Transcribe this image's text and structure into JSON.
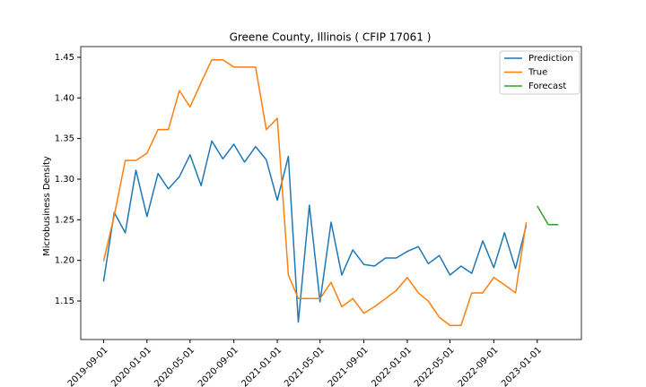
{
  "chart_data": {
    "type": "line",
    "title": "Greene County, Illinois ( CFIP 17061 )",
    "y_label": "Microbusiness Density",
    "x": [
      "2019-09-01",
      "2019-10-01",
      "2019-11-01",
      "2019-12-01",
      "2020-01-01",
      "2020-02-01",
      "2020-03-01",
      "2020-04-01",
      "2020-05-01",
      "2020-06-01",
      "2020-07-01",
      "2020-08-01",
      "2020-09-01",
      "2020-10-01",
      "2020-11-01",
      "2020-12-01",
      "2021-01-01",
      "2021-02-01",
      "2021-03-01",
      "2021-04-01",
      "2021-05-01",
      "2021-06-01",
      "2021-07-01",
      "2021-08-01",
      "2021-09-01",
      "2021-10-01",
      "2021-11-01",
      "2021-12-01",
      "2022-01-01",
      "2022-02-01",
      "2022-03-01",
      "2022-04-01",
      "2022-05-01",
      "2022-06-01",
      "2022-07-01",
      "2022-08-01",
      "2022-09-01",
      "2022-10-01",
      "2022-11-01",
      "2022-12-01",
      "2023-01-01",
      "2023-02-01",
      "2023-03-01"
    ],
    "series": [
      {
        "name": "Prediction",
        "color": "#1f77b4",
        "values": [
          1.174,
          1.259,
          1.234,
          1.311,
          1.254,
          1.307,
          1.288,
          1.303,
          1.33,
          1.292,
          1.347,
          1.325,
          1.343,
          1.321,
          1.34,
          1.324,
          1.274,
          1.328,
          1.124,
          1.268,
          1.149,
          1.247,
          1.182,
          1.213,
          1.195,
          1.193,
          1.203,
          1.203,
          1.211,
          1.217,
          1.196,
          1.206,
          1.182,
          1.193,
          1.184,
          1.224,
          1.191,
          1.234,
          1.19,
          1.243,
          null,
          null,
          null
        ]
      },
      {
        "name": "True",
        "color": "#ff7f0e",
        "values": [
          1.199,
          1.255,
          1.323,
          1.323,
          1.332,
          1.361,
          1.361,
          1.409,
          1.389,
          1.419,
          1.447,
          1.447,
          1.438,
          1.438,
          1.438,
          1.361,
          1.375,
          1.182,
          1.153,
          1.153,
          1.153,
          1.173,
          1.143,
          1.153,
          1.135,
          1.143,
          1.153,
          1.163,
          1.179,
          1.16,
          1.15,
          1.13,
          1.12,
          1.12,
          1.16,
          1.16,
          1.179,
          1.17,
          1.16,
          1.247,
          null,
          null,
          null
        ]
      },
      {
        "name": "Forecast",
        "color": "#2ca02c",
        "values": [
          null,
          null,
          null,
          null,
          null,
          null,
          null,
          null,
          null,
          null,
          null,
          null,
          null,
          null,
          null,
          null,
          null,
          null,
          null,
          null,
          null,
          null,
          null,
          null,
          null,
          null,
          null,
          null,
          null,
          null,
          null,
          null,
          null,
          null,
          null,
          null,
          null,
          null,
          null,
          null,
          1.267,
          1.244,
          1.244
        ]
      }
    ],
    "xlim": [
      "2019-06-29",
      "2023-05-05"
    ],
    "xticks": [
      "2019-09-01",
      "2020-01-01",
      "2020-05-01",
      "2020-09-01",
      "2021-01-01",
      "2021-05-01",
      "2021-09-01",
      "2022-01-01",
      "2022-05-01",
      "2022-09-01",
      "2023-01-01"
    ],
    "ylim": [
      1.1026,
      1.4632
    ],
    "yticks": [
      1.15,
      {
        "value": 1.2,
        "label": "1.20"
      },
      1.25,
      {
        "value": 1.3,
        "label": "1.30"
      },
      1.35,
      {
        "value": 1.4,
        "label": "1.40"
      },
      1.45
    ],
    "legend": "upper right",
    "grid": false
  }
}
